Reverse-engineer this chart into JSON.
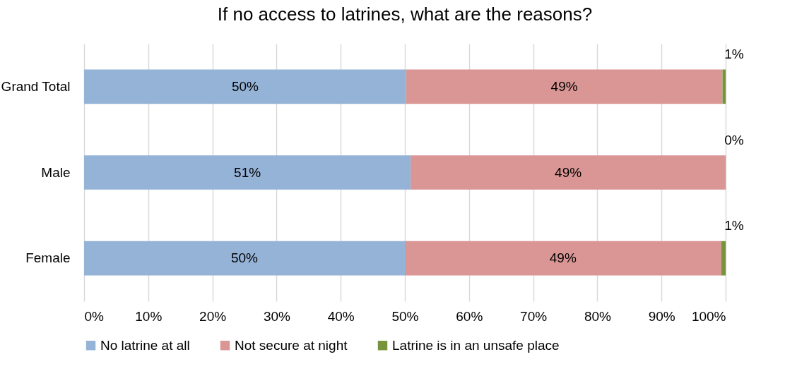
{
  "chart_data": {
    "type": "bar",
    "orientation": "horizontal",
    "stacked": true,
    "title": "If no access to latrines, what are the reasons?",
    "categories": [
      "Grand Total",
      "Male",
      "Female"
    ],
    "series": [
      {
        "name": "No latrine at all",
        "color": "#95b3d7",
        "values": [
          50.2,
          50.9,
          50.0
        ],
        "value_labels": [
          "50%",
          "51%",
          "50%"
        ]
      },
      {
        "name": "Not secure at night",
        "color": "#d99694",
        "values": [
          49.3,
          49.1,
          49.3
        ],
        "value_labels": [
          "49%",
          "49%",
          "49%"
        ]
      },
      {
        "name": "Latrine is in an unsafe place",
        "color": "#77933c",
        "values": [
          0.5,
          0,
          0.7
        ],
        "value_labels": [
          "1%",
          "0%",
          "1%"
        ]
      }
    ],
    "xlim": [
      0,
      100
    ],
    "xticks": [
      {
        "value": 0,
        "label": "0%"
      },
      {
        "value": 10,
        "label": "10%"
      },
      {
        "value": 20,
        "label": "20%"
      },
      {
        "value": 30,
        "label": "30%"
      },
      {
        "value": 40,
        "label": "40%"
      },
      {
        "value": 50,
        "label": "50%"
      },
      {
        "value": 60,
        "label": "60%"
      },
      {
        "value": 70,
        "label": "70%"
      },
      {
        "value": 80,
        "label": "80%"
      },
      {
        "value": 90,
        "label": "90%"
      },
      {
        "value": 100,
        "label": "100%"
      }
    ],
    "grid": "x",
    "legend": "bottom"
  }
}
